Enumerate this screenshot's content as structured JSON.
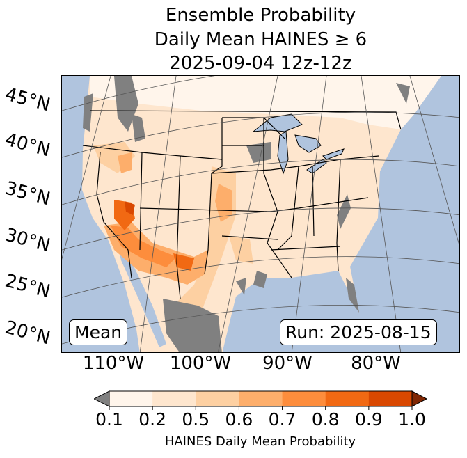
{
  "title": {
    "line1": "Ensemble Probability",
    "line2": "Daily Mean HAINES ≥ 6",
    "line3": "2025-09-04 12z-12z"
  },
  "map": {
    "lat_labels": [
      "45°N",
      "40°N",
      "35°N",
      "30°N",
      "25°N",
      "20°N"
    ],
    "lon_labels": [
      "110°W",
      "100°W",
      "90°W",
      "80°W"
    ],
    "mean_label": "Mean",
    "run_label": "Run: 2025-08-15",
    "colors": {
      "ocean": "#b0c4de",
      "below_min": "#808080",
      "grid": "#555555"
    }
  },
  "colorbar": {
    "ticks": [
      "0.1",
      "0.2",
      "0.5",
      "0.6",
      "0.7",
      "0.8",
      "0.9",
      "1.0"
    ],
    "colors": [
      "#fff5eb",
      "#fee6ce",
      "#fdd0a2",
      "#fdae6b",
      "#fd8d3c",
      "#f16913",
      "#d94801"
    ],
    "under_color": "#808080",
    "over_color": "#7f2704",
    "label": "HAINES Daily Mean Probability"
  }
}
